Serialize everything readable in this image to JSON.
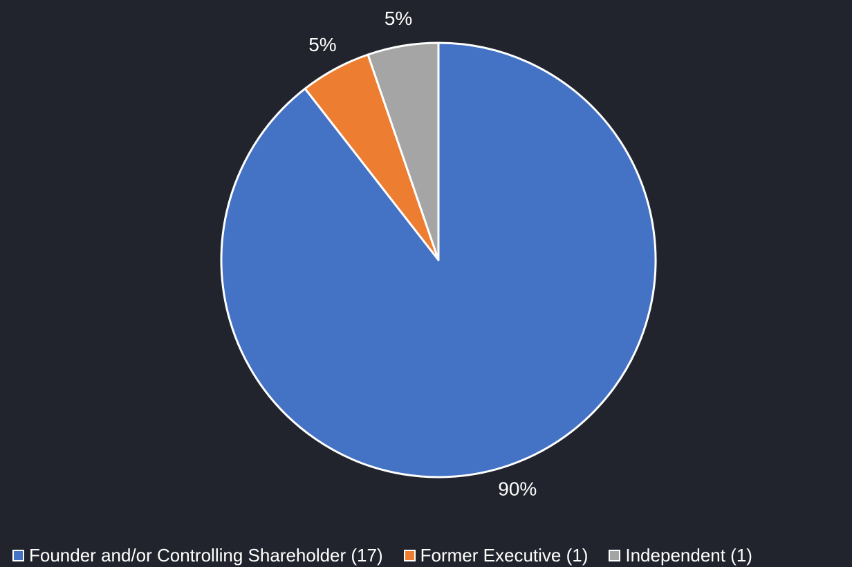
{
  "chart_data": {
    "type": "pie",
    "title": "",
    "series": [
      {
        "name": "Founder and/or Controlling Shareholder (17)",
        "value": 17,
        "label": "90%",
        "color": "#4472c4"
      },
      {
        "name": "Former Executive (1)",
        "value": 1,
        "label": "5%",
        "color": "#ed7d31"
      },
      {
        "name": "Independent (1)",
        "value": 1,
        "label": "5%",
        "color": "#a5a5a5"
      }
    ],
    "slice_border_color": "#ffffff",
    "background": "#21242c",
    "legend_position": "bottom",
    "start_angle": "12 o'clock",
    "direction": "clockwise"
  }
}
